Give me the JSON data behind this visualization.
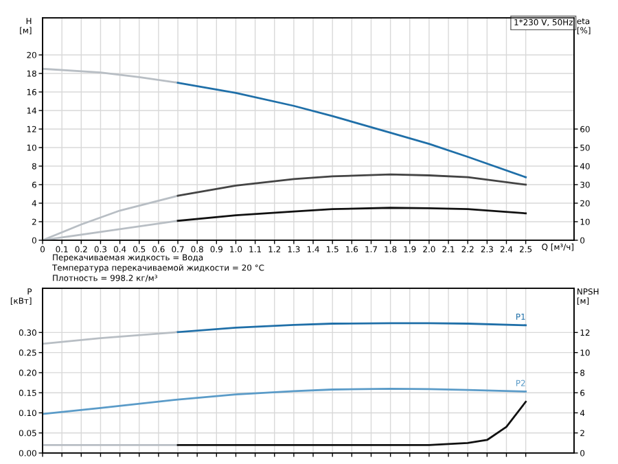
{
  "chart_data": [
    {
      "type": "line",
      "title": "1*230 V, 50Hz",
      "ylabel": "H\n[м]",
      "y2label": "eta\n[%]",
      "xlabel": "Q [м³/ч]",
      "annotations": [
        "Перекачиваемая жидкость = Вода",
        "Температура перекачиваемой жидкости = 20 °C",
        "Плотность = 998.2 кг/м³"
      ],
      "xlim": [
        0,
        2.75
      ],
      "xticks": [
        {
          "value": 0,
          "label": "0"
        },
        {
          "value": 0.1,
          "label": "0.1"
        },
        {
          "value": 0.2,
          "label": "0.2"
        },
        {
          "value": 0.3,
          "label": "0.3"
        },
        {
          "value": 0.4,
          "label": "0.4"
        },
        {
          "value": 0.5,
          "label": "0.5"
        },
        {
          "value": 0.6,
          "label": "0.6"
        },
        {
          "value": 0.7,
          "label": "0.7"
        },
        {
          "value": 0.8,
          "label": "0.8"
        },
        {
          "value": 0.9,
          "label": "0.9"
        },
        {
          "value": 1.0,
          "label": "1.0"
        },
        {
          "value": 1.1,
          "label": "1.1"
        },
        {
          "value": 1.2,
          "label": "1.2"
        },
        {
          "value": 1.3,
          "label": "1.3"
        },
        {
          "value": 1.4,
          "label": "1.4"
        },
        {
          "value": 1.5,
          "label": "1.5"
        },
        {
          "value": 1.6,
          "label": "1.6"
        },
        {
          "value": 1.7,
          "label": "1.7"
        },
        {
          "value": 1.8,
          "label": "1.8"
        },
        {
          "value": 1.9,
          "label": "1.9"
        },
        {
          "value": 2.0,
          "label": "2.0"
        },
        {
          "value": 2.1,
          "label": "2.1"
        },
        {
          "value": 2.2,
          "label": "2.2"
        },
        {
          "value": 2.3,
          "label": "2.3"
        },
        {
          "value": 2.4,
          "label": "2.4"
        },
        {
          "value": 2.5,
          "label": "2.5"
        }
      ],
      "ylim": [
        0,
        24
      ],
      "yticks": [
        0,
        2,
        4,
        6,
        8,
        10,
        12,
        14,
        16,
        18,
        20
      ],
      "y2lim": [
        0,
        120
      ],
      "y2ticks": [
        0,
        10,
        20,
        30,
        40,
        50,
        60
      ],
      "grid": true,
      "series": [
        {
          "color": "#b8bec4",
          "x": [
            0,
            0.3,
            0.5,
            0.7
          ],
          "values": [
            18.5,
            18.1,
            17.6,
            17.0
          ]
        },
        {
          "color": "#1f6fa8",
          "x": [
            0.7,
            1.0,
            1.3,
            1.5,
            1.8,
            2.0,
            2.2,
            2.5
          ],
          "values": [
            17.0,
            15.9,
            14.5,
            13.4,
            11.6,
            10.4,
            9.0,
            6.8
          ]
        },
        {
          "color": "#b8bec4",
          "axis": "y2",
          "x": [
            0,
            0.2,
            0.4,
            0.7
          ],
          "values": [
            0,
            8.5,
            16,
            24
          ]
        },
        {
          "color": "#444444",
          "axis": "y2",
          "x": [
            0.7,
            1.0,
            1.3,
            1.5,
            1.8,
            2.0,
            2.2,
            2.5
          ],
          "values": [
            24,
            29.5,
            33,
            34.5,
            35.5,
            35,
            34,
            30
          ]
        },
        {
          "color": "#b8bec4",
          "axis": "y2",
          "x": [
            0,
            0.3,
            0.7
          ],
          "values": [
            0,
            4.5,
            10.5
          ]
        },
        {
          "color": "#111111",
          "axis": "y2",
          "x": [
            0.7,
            1.0,
            1.3,
            1.5,
            1.8,
            2.0,
            2.2,
            2.5
          ],
          "values": [
            10.5,
            13.5,
            15.5,
            16.8,
            17.5,
            17.3,
            16.8,
            14.5
          ]
        }
      ]
    },
    {
      "type": "line",
      "ylabel": "P\n[кВт]",
      "y2label": "NPSH\n[м]",
      "tick_labels": "y",
      "xlim": [
        0,
        2.75
      ],
      "xticks": [
        {
          "value": 0,
          "label": null
        },
        {
          "value": 0.1,
          "label": null
        },
        {
          "value": 0.2,
          "label": null
        },
        {
          "value": 0.3,
          "label": null
        },
        {
          "value": 0.4,
          "label": null
        },
        {
          "value": 0.5,
          "label": null
        },
        {
          "value": 0.6,
          "label": null
        },
        {
          "value": 0.7,
          "label": null
        },
        {
          "value": 0.8,
          "label": null
        },
        {
          "value": 0.9,
          "label": null
        },
        {
          "value": 1.0,
          "label": null
        },
        {
          "value": 1.1,
          "label": null
        },
        {
          "value": 1.2,
          "label": null
        },
        {
          "value": 1.3,
          "label": null
        },
        {
          "value": 1.4,
          "label": null
        },
        {
          "value": 1.5,
          "label": null
        },
        {
          "value": 1.6,
          "label": null
        },
        {
          "value": 1.7,
          "label": null
        },
        {
          "value": 1.8,
          "label": null
        },
        {
          "value": 1.9,
          "label": null
        },
        {
          "value": 2.0,
          "label": null
        },
        {
          "value": 2.1,
          "label": null
        },
        {
          "value": 2.2,
          "label": null
        },
        {
          "value": 2.3,
          "label": null
        },
        {
          "value": 2.4,
          "label": null
        },
        {
          "value": 2.5,
          "label": null
        }
      ],
      "ylim": [
        0,
        0.41
      ],
      "yticks": [
        {
          "value": 0,
          "label": "0.00"
        },
        {
          "value": 0.05,
          "label": "0.05"
        },
        {
          "value": 0.1,
          "label": "0.10"
        },
        {
          "value": 0.15,
          "label": "0.15"
        },
        {
          "value": 0.2,
          "label": "0.20"
        },
        {
          "value": 0.25,
          "label": "0.25"
        },
        {
          "value": 0.3,
          "label": "0.30"
        }
      ],
      "y2lim": [
        0,
        16.4
      ],
      "y2ticks": [
        0,
        2,
        4,
        6,
        8,
        10,
        12
      ],
      "grid": true,
      "series": [
        {
          "color": "#b8bec4",
          "x": [
            0,
            0.3,
            0.7
          ],
          "values": [
            0.272,
            0.286,
            0.301
          ]
        },
        {
          "name": "P1",
          "color": "#1f6fa8",
          "x": [
            0.7,
            1.0,
            1.3,
            1.5,
            1.8,
            2.0,
            2.2,
            2.5
          ],
          "values": [
            0.301,
            0.312,
            0.319,
            0.322,
            0.323,
            0.323,
            0.322,
            0.318
          ]
        },
        {
          "name": "P2",
          "color": "#5a9bc8",
          "x": [
            0,
            0.3,
            0.7,
            1.0,
            1.3,
            1.5,
            1.8,
            2.0,
            2.2,
            2.5
          ],
          "values": [
            0.097,
            0.112,
            0.133,
            0.146,
            0.154,
            0.158,
            0.16,
            0.159,
            0.157,
            0.153
          ]
        },
        {
          "color": "#b8bec4",
          "axis": "y2",
          "x": [
            0,
            0.7
          ],
          "values": [
            0.8,
            0.8
          ]
        },
        {
          "color": "#111111",
          "axis": "y2",
          "x": [
            0.7,
            1.0,
            1.5,
            2.0,
            2.2,
            2.3,
            2.4,
            2.5
          ],
          "values": [
            0.8,
            0.8,
            0.8,
            0.8,
            1.0,
            1.3,
            2.6,
            5.1
          ]
        }
      ]
    }
  ]
}
